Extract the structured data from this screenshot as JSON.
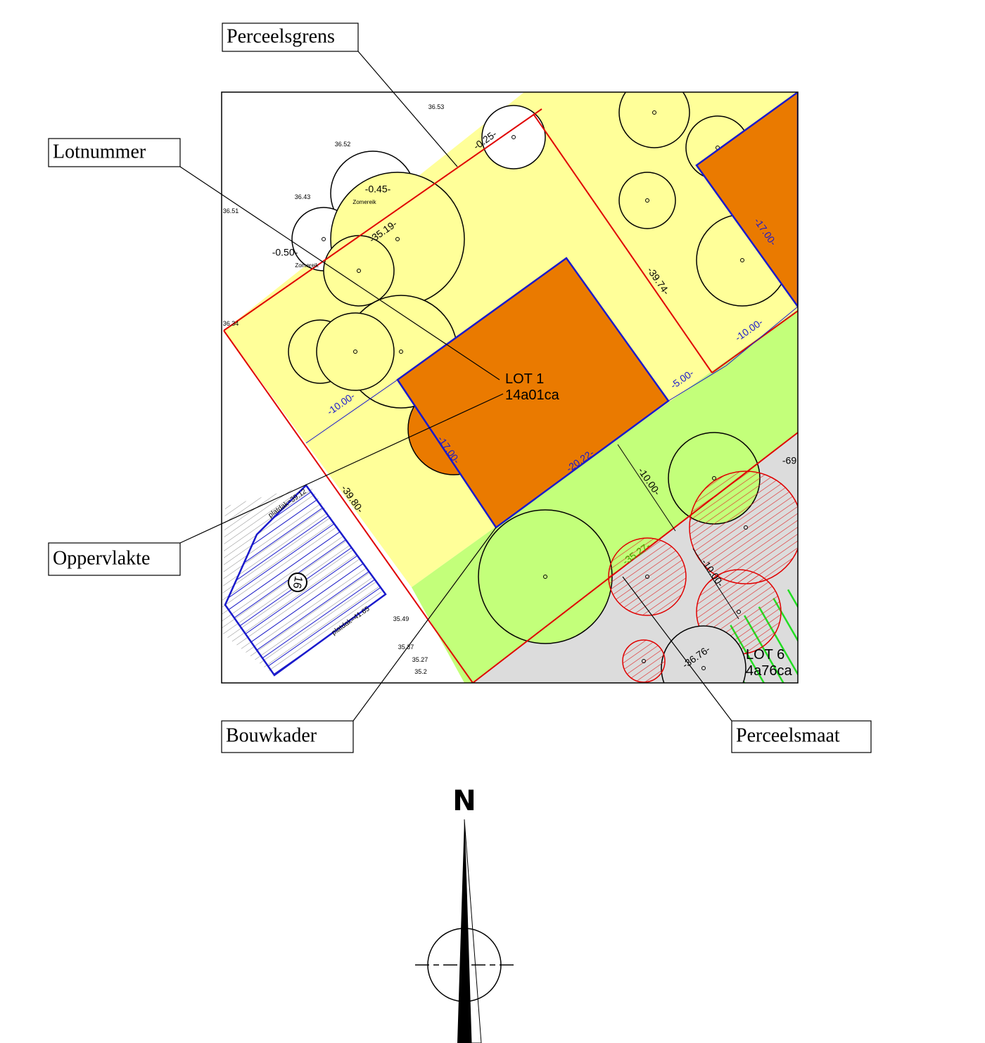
{
  "callouts": [
    {
      "label": "Perceelsgrens"
    },
    {
      "label": "Lotnummer"
    },
    {
      "label": "Oppervlakte"
    },
    {
      "label": "Bouwkader"
    },
    {
      "label": "Perceelsmaat"
    }
  ],
  "lots": [
    {
      "label": "LOT 1",
      "area": "14a01ca"
    },
    {
      "label": "LOT 6",
      "area": "4a76ca"
    }
  ],
  "dimensions": [
    "-10.00-",
    "-17.00-",
    "-20.22-",
    "-5.00-",
    "-10.00-",
    "-17.00-",
    "-39.74-",
    "-39.80-",
    "-10.00-",
    "-10.00-",
    "-35.27-",
    "-36.76-",
    "-69",
    "-0.25-",
    "-0.45-",
    "-0.50-",
    "-35.19-"
  ],
  "elevations": [
    "36.53",
    "36.52",
    "36.43",
    "36.51",
    "36.34",
    "35.49",
    "35.37",
    "35.27",
    "35.2"
  ],
  "tree_names": [
    "Zomereik",
    "Zomereik"
  ],
  "roof_levels": [
    "platdak=39.12",
    "platdak=41.65"
  ],
  "building_number": "16",
  "compass": {
    "label": "N"
  }
}
